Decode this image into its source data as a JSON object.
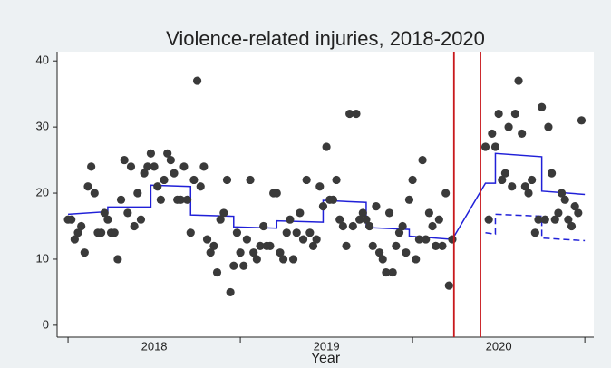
{
  "chart_data": {
    "type": "scatter",
    "title": "Violence-related injuries, 2018-2020",
    "xlabel": "Year",
    "x": [
      0,
      1,
      2,
      3,
      4,
      5,
      6,
      7,
      8,
      9,
      10,
      11,
      12,
      13,
      14,
      15,
      16,
      17,
      18,
      19,
      20,
      21,
      22,
      23,
      24,
      25,
      26,
      27,
      28,
      29,
      30,
      31,
      32,
      33,
      34,
      35,
      36,
      37,
      38,
      39,
      40,
      41,
      42,
      43,
      44,
      45,
      46,
      47,
      48,
      49,
      50,
      51,
      52,
      53,
      54,
      55,
      56,
      57,
      58,
      59,
      60,
      61,
      62,
      63,
      64,
      65,
      66,
      67,
      68,
      69,
      70,
      71,
      72,
      73,
      74,
      75,
      76,
      77,
      78,
      79,
      80,
      81,
      82,
      83,
      84,
      85,
      86,
      87,
      88,
      89,
      90,
      91,
      92,
      93,
      94,
      95,
      96,
      97,
      98,
      99,
      100,
      101,
      102,
      103,
      104,
      105,
      106,
      107,
      108,
      109,
      110,
      111,
      112,
      113,
      114,
      115,
      116,
      126,
      127,
      128,
      129,
      130,
      131,
      132,
      133,
      134,
      135,
      136,
      137,
      138,
      139,
      140,
      141,
      142,
      143,
      144,
      145,
      146,
      147,
      148,
      149,
      150,
      151,
      152,
      153,
      154,
      155
    ],
    "values": [
      16,
      16,
      13,
      14,
      15,
      11,
      21,
      24,
      20,
      14,
      14,
      17,
      16,
      14,
      14,
      10,
      19,
      25,
      17,
      24,
      15,
      20,
      16,
      23,
      24,
      26,
      24,
      21,
      19,
      22,
      26,
      25,
      23,
      19,
      19,
      24,
      19,
      14,
      22,
      37,
      21,
      24,
      13,
      11,
      12,
      8,
      16,
      17,
      22,
      5,
      9,
      14,
      11,
      9,
      13,
      22,
      11,
      10,
      12,
      15,
      12,
      12,
      20,
      20,
      11,
      10,
      14,
      16,
      10,
      14,
      17,
      13,
      22,
      14,
      12,
      13,
      21,
      18,
      27,
      19,
      19,
      22,
      16,
      15,
      12,
      32,
      15,
      32,
      16,
      17,
      16,
      15,
      12,
      18,
      11,
      10,
      8,
      17,
      8,
      12,
      14,
      15,
      11,
      19,
      22,
      10,
      13,
      25,
      13,
      17,
      15,
      12,
      16,
      12,
      20,
      6,
      13,
      27,
      16,
      29,
      27,
      32,
      22,
      23,
      30,
      21,
      32,
      37,
      29,
      21,
      20,
      22,
      14,
      16,
      33,
      16,
      30,
      23,
      16,
      17,
      20,
      19,
      16,
      15,
      18,
      17,
      31
    ],
    "color": "#3a3a3a",
    "lines": [
      {
        "x": [
          0,
          12,
          12,
          25,
          25,
          37,
          37,
          50,
          50,
          63,
          63,
          77,
          77,
          90,
          90,
          103,
          103,
          116,
          126,
          129,
          129,
          143,
          143,
          156
        ],
        "values": [
          16.8,
          17.2,
          17.9,
          17.9,
          21.2,
          21.0,
          16.7,
          16.5,
          14.9,
          14.7,
          15.8,
          15.6,
          18.9,
          18.6,
          14.8,
          14.5,
          13.5,
          13.0,
          21.5,
          21.5,
          26.0,
          25.5,
          20.3,
          19.8
        ],
        "color": "#2020d8",
        "dashed": false
      },
      {
        "x": [
          126,
          129,
          129,
          143,
          143,
          156
        ],
        "values": [
          14.0,
          13.8,
          16.8,
          16.5,
          13.2,
          12.8
        ],
        "color": "#2020d8",
        "dashed": true
      }
    ],
    "vlines": {
      "values": [
        116.5,
        124.5
      ],
      "color": "#c8181c"
    },
    "xlim": [
      -3.3,
      158.7
    ],
    "ylim": [
      -1.8,
      41.4
    ],
    "yticks": [
      0,
      10,
      20,
      30,
      40
    ],
    "xtick_marks": [
      0,
      52,
      104,
      156
    ],
    "xticks": [
      {
        "value": 26,
        "label": "2018"
      },
      {
        "value": 78,
        "label": "2019"
      },
      {
        "value": 130,
        "label": "2020"
      }
    ],
    "grid": false
  }
}
